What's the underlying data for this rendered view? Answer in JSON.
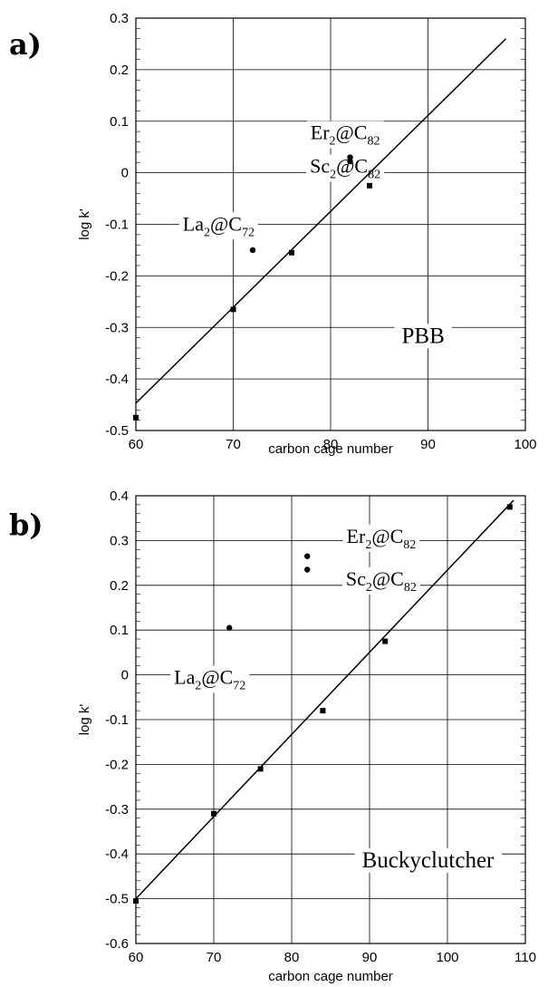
{
  "chart_data": [
    {
      "panel_label": "a)",
      "type": "scatter",
      "xlabel": "carbon cage number",
      "ylabel": "log k'",
      "xlim": [
        60,
        100
      ],
      "ylim": [
        -0.5,
        0.3
      ],
      "xticks": [
        60,
        70,
        80,
        90,
        100
      ],
      "yticks": [
        -0.5,
        -0.4,
        -0.3,
        -0.2,
        -0.1,
        0,
        0.1,
        0.2,
        0.3
      ],
      "xtick_labels": [
        "60",
        "70",
        "80",
        "90",
        "100"
      ],
      "ytick_labels": [
        "-0.5",
        "-0.4",
        "-0.3",
        "-0.2",
        "-0.1",
        "0",
        "0.1",
        "0.2",
        "0.3"
      ],
      "grid": true,
      "series": [
        {
          "marker": "square",
          "points": [
            {
              "x": 60,
              "y": -0.475
            },
            {
              "x": 70,
              "y": -0.265
            },
            {
              "x": 76,
              "y": -0.155
            },
            {
              "x": 84,
              "y": -0.025
            }
          ]
        },
        {
          "marker": "circle",
          "points": [
            {
              "x": 72,
              "y": -0.15
            },
            {
              "x": 82,
              "y": 0.03
            },
            {
              "x": 82,
              "y": 0.022
            }
          ]
        }
      ],
      "fit_line": {
        "x": [
          60,
          98
        ],
        "y": [
          -0.447,
          0.26
        ]
      },
      "annotations": [
        {
          "base": "Er",
          "sub1": "2",
          "mid": "@C",
          "sub2": "82",
          "x": 81.5,
          "y": 0.065
        },
        {
          "base": "Sc",
          "sub1": "2",
          "mid": "@C",
          "sub2": "82",
          "x": 81.5,
          "y": 0.0
        },
        {
          "base": "La",
          "sub1": "2",
          "mid": "@C",
          "sub2": "72",
          "x": 68.5,
          "y": -0.112
        }
      ],
      "label": {
        "text": "PBB",
        "x": 89.5,
        "y": -0.33
      }
    },
    {
      "panel_label": "b)",
      "type": "scatter",
      "xlabel": "carbon cage number",
      "ylabel": "log k'",
      "xlim": [
        60,
        110
      ],
      "ylim": [
        -0.6,
        0.4
      ],
      "xticks": [
        60,
        70,
        80,
        90,
        100,
        110
      ],
      "yticks": [
        -0.6,
        -0.5,
        -0.4,
        -0.3,
        -0.2,
        -0.1,
        0,
        0.1,
        0.2,
        0.3,
        0.4
      ],
      "xtick_labels": [
        "60",
        "70",
        "80",
        "90",
        "100",
        "110"
      ],
      "ytick_labels": [
        "-0.6",
        "-0.5",
        "-0.4",
        "-0.3",
        "-0.2",
        "-0.1",
        "0",
        "0.1",
        "0.2",
        "0.3",
        "0.4"
      ],
      "grid": true,
      "series": [
        {
          "marker": "square",
          "points": [
            {
              "x": 60,
              "y": -0.505
            },
            {
              "x": 70,
              "y": -0.31
            },
            {
              "x": 76,
              "y": -0.21
            },
            {
              "x": 84,
              "y": -0.08
            },
            {
              "x": 92,
              "y": 0.075
            },
            {
              "x": 108,
              "y": 0.375
            }
          ]
        },
        {
          "marker": "circle",
          "points": [
            {
              "x": 72,
              "y": 0.105
            },
            {
              "x": 82,
              "y": 0.265
            },
            {
              "x": 82,
              "y": 0.235
            }
          ]
        }
      ],
      "fit_line": {
        "x": [
          60,
          108.5
        ],
        "y": [
          -0.5,
          0.39
        ]
      },
      "annotations": [
        {
          "base": "Er",
          "sub1": "2",
          "mid": "@C",
          "sub2": "82",
          "x": 91.5,
          "y": 0.295
        },
        {
          "base": "Sc",
          "sub1": "2",
          "mid": "@C",
          "sub2": "82",
          "x": 91.5,
          "y": 0.2
        },
        {
          "base": "La",
          "sub1": "2",
          "mid": "@C",
          "sub2": "72",
          "x": 69.5,
          "y": -0.02
        }
      ],
      "label": {
        "text": "Buckyclutcher",
        "x": 97.5,
        "y": -0.43
      }
    }
  ]
}
